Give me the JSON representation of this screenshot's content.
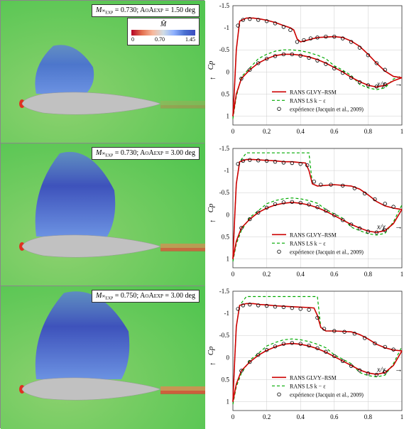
{
  "rows": [
    {
      "mach": "0.730",
      "aoa": "1.50",
      "cfd": {
        "airfoil_center_y": 145,
        "plume_color": "#4a71d1",
        "plume_height": 75,
        "plume_width": 80,
        "wake_red_opacity": 0.2
      },
      "cp_upper": [
        {
          "x": 0.0,
          "y": 1.0
        },
        {
          "x": 0.01,
          "y": 0.3
        },
        {
          "x": 0.02,
          "y": -0.5
        },
        {
          "x": 0.04,
          "y": -1.15
        },
        {
          "x": 0.08,
          "y": -1.22
        },
        {
          "x": 0.12,
          "y": -1.22
        },
        {
          "x": 0.16,
          "y": -1.2
        },
        {
          "x": 0.2,
          "y": -1.17
        },
        {
          "x": 0.25,
          "y": -1.12
        },
        {
          "x": 0.3,
          "y": -1.05
        },
        {
          "x": 0.34,
          "y": -1.0
        },
        {
          "x": 0.36,
          "y": -0.95
        },
        {
          "x": 0.38,
          "y": -0.75
        },
        {
          "x": 0.4,
          "y": -0.68
        },
        {
          "x": 0.5,
          "y": -0.78
        },
        {
          "x": 0.6,
          "y": -0.8
        },
        {
          "x": 0.65,
          "y": -0.78
        },
        {
          "x": 0.7,
          "y": -0.7
        },
        {
          "x": 0.75,
          "y": -0.58
        },
        {
          "x": 0.8,
          "y": -0.4
        },
        {
          "x": 0.85,
          "y": -0.2
        },
        {
          "x": 0.9,
          "y": -0.02
        },
        {
          "x": 0.95,
          "y": 0.1
        },
        {
          "x": 1.0,
          "y": 0.13
        }
      ],
      "cp_lower": [
        {
          "x": 0.0,
          "y": 1.0
        },
        {
          "x": 0.02,
          "y": 0.5
        },
        {
          "x": 0.05,
          "y": 0.15
        },
        {
          "x": 0.1,
          "y": -0.05
        },
        {
          "x": 0.15,
          "y": -0.2
        },
        {
          "x": 0.2,
          "y": -0.3
        },
        {
          "x": 0.25,
          "y": -0.37
        },
        {
          "x": 0.3,
          "y": -0.4
        },
        {
          "x": 0.35,
          "y": -0.4
        },
        {
          "x": 0.4,
          "y": -0.38
        },
        {
          "x": 0.45,
          "y": -0.34
        },
        {
          "x": 0.5,
          "y": -0.28
        },
        {
          "x": 0.55,
          "y": -0.2
        },
        {
          "x": 0.6,
          "y": -0.1
        },
        {
          "x": 0.65,
          "y": 0.0
        },
        {
          "x": 0.7,
          "y": 0.12
        },
        {
          "x": 0.75,
          "y": 0.22
        },
        {
          "x": 0.8,
          "y": 0.3
        },
        {
          "x": 0.85,
          "y": 0.34
        },
        {
          "x": 0.9,
          "y": 0.3
        },
        {
          "x": 0.95,
          "y": 0.2
        },
        {
          "x": 1.0,
          "y": 0.13
        }
      ],
      "exp_pts": [
        {
          "x": 0.03,
          "y": -1.05
        },
        {
          "x": 0.06,
          "y": -1.18
        },
        {
          "x": 0.1,
          "y": -1.2
        },
        {
          "x": 0.15,
          "y": -1.18
        },
        {
          "x": 0.2,
          "y": -1.15
        },
        {
          "x": 0.25,
          "y": -1.1
        },
        {
          "x": 0.3,
          "y": -1.02
        },
        {
          "x": 0.34,
          "y": -0.95
        },
        {
          "x": 0.38,
          "y": -0.68
        },
        {
          "x": 0.42,
          "y": -0.72
        },
        {
          "x": 0.46,
          "y": -0.76
        },
        {
          "x": 0.5,
          "y": -0.78
        },
        {
          "x": 0.55,
          "y": -0.8
        },
        {
          "x": 0.6,
          "y": -0.8
        },
        {
          "x": 0.65,
          "y": -0.76
        },
        {
          "x": 0.7,
          "y": -0.68
        },
        {
          "x": 0.75,
          "y": -0.55
        },
        {
          "x": 0.8,
          "y": -0.38
        },
        {
          "x": 0.85,
          "y": -0.2
        },
        {
          "x": 0.9,
          "y": -0.05
        },
        {
          "x": 0.05,
          "y": 0.15
        },
        {
          "x": 0.1,
          "y": -0.05
        },
        {
          "x": 0.15,
          "y": -0.2
        },
        {
          "x": 0.2,
          "y": -0.3
        },
        {
          "x": 0.25,
          "y": -0.36
        },
        {
          "x": 0.3,
          "y": -0.4
        },
        {
          "x": 0.35,
          "y": -0.4
        },
        {
          "x": 0.4,
          "y": -0.37
        },
        {
          "x": 0.45,
          "y": -0.32
        },
        {
          "x": 0.5,
          "y": -0.26
        },
        {
          "x": 0.55,
          "y": -0.18
        },
        {
          "x": 0.6,
          "y": -0.08
        },
        {
          "x": 0.65,
          "y": 0.02
        },
        {
          "x": 0.7,
          "y": 0.13
        },
        {
          "x": 0.75,
          "y": 0.23
        },
        {
          "x": 0.8,
          "y": 0.3
        },
        {
          "x": 0.85,
          "y": 0.33
        },
        {
          "x": 0.9,
          "y": 0.28
        }
      ],
      "ke_shock_x": 0.38
    },
    {
      "mach": "0.730",
      "aoa": "3.00",
      "cfd": {
        "airfoil_center_y": 145,
        "plume_color": "#3b4cc0",
        "plume_height": 130,
        "plume_width": 110,
        "wake_red_opacity": 0.6
      },
      "cp_upper": [
        {
          "x": 0.0,
          "y": 1.0
        },
        {
          "x": 0.01,
          "y": 0.1
        },
        {
          "x": 0.02,
          "y": -0.7
        },
        {
          "x": 0.04,
          "y": -1.2
        },
        {
          "x": 0.08,
          "y": -1.25
        },
        {
          "x": 0.12,
          "y": -1.25
        },
        {
          "x": 0.16,
          "y": -1.24
        },
        {
          "x": 0.2,
          "y": -1.23
        },
        {
          "x": 0.25,
          "y": -1.22
        },
        {
          "x": 0.3,
          "y": -1.2
        },
        {
          "x": 0.35,
          "y": -1.2
        },
        {
          "x": 0.4,
          "y": -1.18
        },
        {
          "x": 0.43,
          "y": -1.17
        },
        {
          "x": 0.45,
          "y": -1.0
        },
        {
          "x": 0.47,
          "y": -0.7
        },
        {
          "x": 0.5,
          "y": -0.65
        },
        {
          "x": 0.6,
          "y": -0.68
        },
        {
          "x": 0.7,
          "y": -0.65
        },
        {
          "x": 0.75,
          "y": -0.58
        },
        {
          "x": 0.8,
          "y": -0.45
        },
        {
          "x": 0.85,
          "y": -0.3
        },
        {
          "x": 0.9,
          "y": -0.2
        },
        {
          "x": 0.95,
          "y": -0.15
        },
        {
          "x": 1.0,
          "y": -0.12
        }
      ],
      "cp_lower": [
        {
          "x": 0.0,
          "y": 1.0
        },
        {
          "x": 0.02,
          "y": 0.6
        },
        {
          "x": 0.05,
          "y": 0.3
        },
        {
          "x": 0.1,
          "y": 0.1
        },
        {
          "x": 0.15,
          "y": -0.05
        },
        {
          "x": 0.2,
          "y": -0.15
        },
        {
          "x": 0.25,
          "y": -0.22
        },
        {
          "x": 0.3,
          "y": -0.26
        },
        {
          "x": 0.35,
          "y": -0.28
        },
        {
          "x": 0.4,
          "y": -0.26
        },
        {
          "x": 0.45,
          "y": -0.22
        },
        {
          "x": 0.5,
          "y": -0.16
        },
        {
          "x": 0.55,
          "y": -0.08
        },
        {
          "x": 0.6,
          "y": 0.02
        },
        {
          "x": 0.65,
          "y": 0.12
        },
        {
          "x": 0.7,
          "y": 0.22
        },
        {
          "x": 0.75,
          "y": 0.3
        },
        {
          "x": 0.8,
          "y": 0.37
        },
        {
          "x": 0.85,
          "y": 0.4
        },
        {
          "x": 0.9,
          "y": 0.36
        },
        {
          "x": 0.95,
          "y": 0.2
        },
        {
          "x": 1.0,
          "y": -0.12
        }
      ],
      "exp_pts": [
        {
          "x": 0.03,
          "y": -1.15
        },
        {
          "x": 0.06,
          "y": -1.22
        },
        {
          "x": 0.1,
          "y": -1.24
        },
        {
          "x": 0.15,
          "y": -1.23
        },
        {
          "x": 0.2,
          "y": -1.22
        },
        {
          "x": 0.25,
          "y": -1.2
        },
        {
          "x": 0.3,
          "y": -1.18
        },
        {
          "x": 0.35,
          "y": -1.17
        },
        {
          "x": 0.4,
          "y": -1.15
        },
        {
          "x": 0.44,
          "y": -1.12
        },
        {
          "x": 0.48,
          "y": -0.75
        },
        {
          "x": 0.52,
          "y": -0.68
        },
        {
          "x": 0.58,
          "y": -0.68
        },
        {
          "x": 0.65,
          "y": -0.66
        },
        {
          "x": 0.72,
          "y": -0.6
        },
        {
          "x": 0.78,
          "y": -0.48
        },
        {
          "x": 0.84,
          "y": -0.35
        },
        {
          "x": 0.9,
          "y": -0.25
        },
        {
          "x": 0.95,
          "y": -0.18
        },
        {
          "x": 0.05,
          "y": 0.3
        },
        {
          "x": 0.1,
          "y": 0.1
        },
        {
          "x": 0.15,
          "y": -0.05
        },
        {
          "x": 0.2,
          "y": -0.16
        },
        {
          "x": 0.25,
          "y": -0.24
        },
        {
          "x": 0.3,
          "y": -0.28
        },
        {
          "x": 0.35,
          "y": -0.29
        },
        {
          "x": 0.4,
          "y": -0.27
        },
        {
          "x": 0.45,
          "y": -0.23
        },
        {
          "x": 0.5,
          "y": -0.17
        },
        {
          "x": 0.55,
          "y": -0.09
        },
        {
          "x": 0.6,
          "y": 0.01
        },
        {
          "x": 0.65,
          "y": 0.12
        },
        {
          "x": 0.7,
          "y": 0.22
        },
        {
          "x": 0.75,
          "y": 0.31
        },
        {
          "x": 0.8,
          "y": 0.38
        },
        {
          "x": 0.85,
          "y": 0.4
        },
        {
          "x": 0.9,
          "y": 0.35
        }
      ],
      "ke_shock_x": 0.52,
      "ke_plateau": -1.4
    },
    {
      "mach": "0.750",
      "aoa": "3.00",
      "cfd": {
        "airfoil_center_y": 145,
        "plume_color": "#3b4cc0",
        "plume_height": 135,
        "plume_width": 130,
        "wake_red_opacity": 0.7
      },
      "cp_upper": [
        {
          "x": 0.0,
          "y": 1.0
        },
        {
          "x": 0.01,
          "y": 0.1
        },
        {
          "x": 0.02,
          "y": -0.7
        },
        {
          "x": 0.04,
          "y": -1.18
        },
        {
          "x": 0.08,
          "y": -1.22
        },
        {
          "x": 0.12,
          "y": -1.22
        },
        {
          "x": 0.16,
          "y": -1.2
        },
        {
          "x": 0.2,
          "y": -1.19
        },
        {
          "x": 0.25,
          "y": -1.17
        },
        {
          "x": 0.3,
          "y": -1.16
        },
        {
          "x": 0.35,
          "y": -1.15
        },
        {
          "x": 0.4,
          "y": -1.14
        },
        {
          "x": 0.45,
          "y": -1.13
        },
        {
          "x": 0.48,
          "y": -1.12
        },
        {
          "x": 0.5,
          "y": -0.95
        },
        {
          "x": 0.52,
          "y": -0.68
        },
        {
          "x": 0.55,
          "y": -0.6
        },
        {
          "x": 0.6,
          "y": -0.6
        },
        {
          "x": 0.7,
          "y": -0.58
        },
        {
          "x": 0.75,
          "y": -0.52
        },
        {
          "x": 0.8,
          "y": -0.42
        },
        {
          "x": 0.85,
          "y": -0.3
        },
        {
          "x": 0.9,
          "y": -0.22
        },
        {
          "x": 0.95,
          "y": -0.17
        },
        {
          "x": 1.0,
          "y": -0.15
        }
      ],
      "cp_lower": [
        {
          "x": 0.0,
          "y": 1.0
        },
        {
          "x": 0.02,
          "y": 0.6
        },
        {
          "x": 0.05,
          "y": 0.3
        },
        {
          "x": 0.1,
          "y": 0.1
        },
        {
          "x": 0.15,
          "y": -0.05
        },
        {
          "x": 0.2,
          "y": -0.16
        },
        {
          "x": 0.25,
          "y": -0.24
        },
        {
          "x": 0.3,
          "y": -0.3
        },
        {
          "x": 0.35,
          "y": -0.32
        },
        {
          "x": 0.4,
          "y": -0.3
        },
        {
          "x": 0.45,
          "y": -0.26
        },
        {
          "x": 0.5,
          "y": -0.2
        },
        {
          "x": 0.55,
          "y": -0.12
        },
        {
          "x": 0.6,
          "y": -0.02
        },
        {
          "x": 0.65,
          "y": 0.08
        },
        {
          "x": 0.7,
          "y": 0.18
        },
        {
          "x": 0.75,
          "y": 0.28
        },
        {
          "x": 0.8,
          "y": 0.35
        },
        {
          "x": 0.85,
          "y": 0.38
        },
        {
          "x": 0.9,
          "y": 0.34
        },
        {
          "x": 0.95,
          "y": 0.18
        },
        {
          "x": 1.0,
          "y": -0.15
        }
      ],
      "exp_pts": [
        {
          "x": 0.03,
          "y": -1.1
        },
        {
          "x": 0.06,
          "y": -1.18
        },
        {
          "x": 0.1,
          "y": -1.2
        },
        {
          "x": 0.15,
          "y": -1.18
        },
        {
          "x": 0.2,
          "y": -1.17
        },
        {
          "x": 0.25,
          "y": -1.15
        },
        {
          "x": 0.3,
          "y": -1.14
        },
        {
          "x": 0.35,
          "y": -1.12
        },
        {
          "x": 0.4,
          "y": -1.1
        },
        {
          "x": 0.45,
          "y": -1.08
        },
        {
          "x": 0.5,
          "y": -0.9
        },
        {
          "x": 0.54,
          "y": -0.65
        },
        {
          "x": 0.6,
          "y": -0.6
        },
        {
          "x": 0.66,
          "y": -0.58
        },
        {
          "x": 0.72,
          "y": -0.54
        },
        {
          "x": 0.78,
          "y": -0.44
        },
        {
          "x": 0.84,
          "y": -0.32
        },
        {
          "x": 0.9,
          "y": -0.24
        },
        {
          "x": 0.95,
          "y": -0.18
        },
        {
          "x": 0.05,
          "y": 0.3
        },
        {
          "x": 0.1,
          "y": 0.1
        },
        {
          "x": 0.15,
          "y": -0.06
        },
        {
          "x": 0.2,
          "y": -0.17
        },
        {
          "x": 0.25,
          "y": -0.25
        },
        {
          "x": 0.3,
          "y": -0.31
        },
        {
          "x": 0.35,
          "y": -0.33
        },
        {
          "x": 0.4,
          "y": -0.31
        },
        {
          "x": 0.45,
          "y": -0.27
        },
        {
          "x": 0.5,
          "y": -0.21
        },
        {
          "x": 0.55,
          "y": -0.13
        },
        {
          "x": 0.6,
          "y": -0.03
        },
        {
          "x": 0.65,
          "y": 0.08
        },
        {
          "x": 0.7,
          "y": 0.19
        },
        {
          "x": 0.75,
          "y": 0.29
        },
        {
          "x": 0.8,
          "y": 0.36
        },
        {
          "x": 0.85,
          "y": 0.39
        },
        {
          "x": 0.9,
          "y": 0.33
        }
      ],
      "ke_shock_x": 0.58,
      "ke_plateau": -1.38
    }
  ],
  "colorbar": {
    "title": "M̂",
    "min": "0",
    "mid": "0.70",
    "max": "1.45"
  },
  "plot": {
    "xlim": [
      0,
      1
    ],
    "ylim": [
      -1.5,
      1.2
    ],
    "xticks": [
      0,
      0.2,
      0.4,
      0.6,
      0.8,
      1
    ],
    "yticks": [
      -1.5,
      -1,
      -0.5,
      0,
      0.5,
      1
    ],
    "xlabel": "x/χ",
    "ylabel": "Cp",
    "colors": {
      "rsm": "#cc0000",
      "ke": "#00aa00",
      "exp": "#000000",
      "grid": "#cccccc"
    },
    "legend": {
      "rsm": "RANS GLVY–RSM",
      "ke": "RANS LS k − ε",
      "exp": "expérience (Jacquin et al., 2009)"
    }
  },
  "cfd_colors": {
    "bg_far": "#52c550",
    "bg_mid": "#8dd16f",
    "airfoil": "#c1c1c1",
    "wake": "#f08050"
  }
}
